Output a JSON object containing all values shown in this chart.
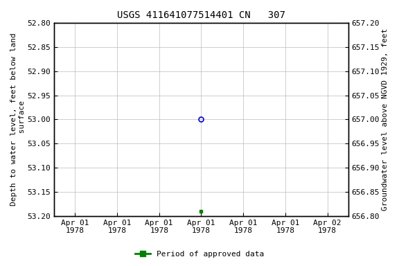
{
  "title": "USGS 411641077514401 CN   307",
  "left_ylabel": "Depth to water level, feet below land\n surface",
  "right_ylabel": "Groundwater level above NGVD 1929, feet",
  "ylim_left_top": 52.8,
  "ylim_left_bottom": 53.2,
  "ylim_right_top": 657.2,
  "ylim_right_bottom": 656.8,
  "yticks_left": [
    52.8,
    52.85,
    52.9,
    52.95,
    53.0,
    53.05,
    53.1,
    53.15,
    53.2
  ],
  "yticks_right": [
    657.2,
    657.15,
    657.1,
    657.05,
    657.0,
    656.95,
    656.9,
    656.85,
    656.8
  ],
  "x_data_open": 3.0,
  "y_data_open": 53.0,
  "x_data_filled": 3.0,
  "y_data_filled": 53.19,
  "open_circle_color": "#0000cc",
  "filled_square_color": "#008000",
  "background_color": "#ffffff",
  "grid_color": "#bbbbbb",
  "xtick_labels": [
    "Apr 01\n1978",
    "Apr 01\n1978",
    "Apr 01\n1978",
    "Apr 01\n1978",
    "Apr 01\n1978",
    "Apr 01\n1978",
    "Apr 02\n1978"
  ],
  "xtick_positions": [
    0,
    1,
    2,
    3,
    4,
    5,
    6
  ],
  "xlim": [
    -0.5,
    6.5
  ],
  "title_fontsize": 10,
  "axis_label_fontsize": 8,
  "tick_fontsize": 8,
  "legend_label": "Period of approved data"
}
